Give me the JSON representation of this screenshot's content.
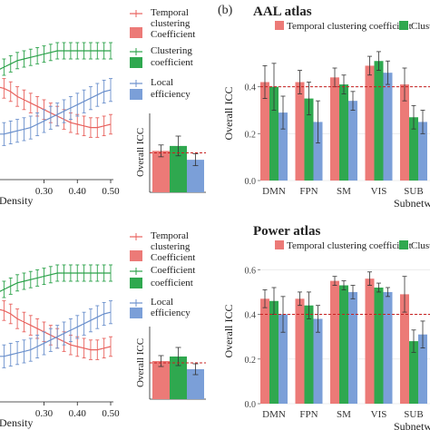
{
  "left_panel": {
    "legend": {
      "temporal": "Temporal clustering Coefficient",
      "temporal_lines": [
        "Temporal",
        "clustering"
      ],
      "temporal_patch": "Coefficient",
      "clustering_lines": [
        "Clustering",
        "coefficient"
      ],
      "local_lines": [
        "Local",
        "efficiency"
      ]
    },
    "xlabel": "Density",
    "inset_ylabel": "Overall ICC"
  },
  "right_panel": {
    "panel_label": "(b)",
    "legend_items": [
      "Temporal clustering coefficient",
      "Clust"
    ],
    "ylabel": "Overall ICC",
    "xlabel": "Subnetw"
  },
  "colors": {
    "temporal": "#e8625e",
    "clustering": "#2ca24a",
    "local": "#6b90cc",
    "temporal_bar": "#ec7a77",
    "clustering_bar": "#2fa84f",
    "local_bar": "#7b9fd8",
    "threshold": "#c82020",
    "grid": "#e8e8e8"
  },
  "chart_data": [
    {
      "type": "line",
      "x": [
        0.1,
        0.12,
        0.14,
        0.16,
        0.18,
        0.2,
        0.22,
        0.24,
        0.26,
        0.28,
        0.3,
        0.32,
        0.34,
        0.36,
        0.38,
        0.4,
        0.42,
        0.44,
        0.46,
        0.48,
        0.5
      ],
      "xtick_labels": [
        "0.30",
        "0.40",
        "0.50"
      ],
      "xlim": [
        0.1,
        0.5
      ],
      "ylim": [
        0.0,
        1.0
      ],
      "xlabel": "Density",
      "series": [
        {
          "name": "Temporal clustering Coefficient",
          "color": "#e8625e",
          "values": [
            0.62,
            0.62,
            0.6,
            0.58,
            0.57,
            0.55,
            0.52,
            0.5,
            0.48,
            0.46,
            0.44,
            0.42,
            0.4,
            0.38,
            0.36,
            0.35,
            0.34,
            0.33,
            0.33,
            0.34,
            0.35
          ],
          "err": 0.06
        },
        {
          "name": "Clustering coefficient",
          "color": "#2ca24a",
          "values": [
            0.62,
            0.64,
            0.66,
            0.68,
            0.7,
            0.72,
            0.74,
            0.75,
            0.76,
            0.77,
            0.78,
            0.79,
            0.8,
            0.8,
            0.8,
            0.8,
            0.8,
            0.8,
            0.8,
            0.8,
            0.8
          ],
          "err": 0.05
        },
        {
          "name": "Local efficiency",
          "color": "#6b90cc",
          "values": [
            0.32,
            0.3,
            0.29,
            0.29,
            0.29,
            0.3,
            0.31,
            0.32,
            0.33,
            0.35,
            0.37,
            0.39,
            0.41,
            0.43,
            0.45,
            0.47,
            0.49,
            0.51,
            0.53,
            0.55,
            0.56
          ],
          "err": 0.07
        }
      ]
    },
    {
      "type": "bar",
      "ylabel": "Overall ICC",
      "ylim": [
        0.0,
        0.8
      ],
      "threshold": 0.4,
      "series": [
        {
          "name": "Temporal clustering Coefficient",
          "color": "#ec7a77",
          "value": 0.42,
          "err": 0.06
        },
        {
          "name": "Clustering coefficient",
          "color": "#2fa84f",
          "value": 0.47,
          "err": 0.1
        },
        {
          "name": "Local efficiency",
          "color": "#7b9fd8",
          "value": 0.33,
          "err": 0.06
        }
      ]
    },
    {
      "type": "bar",
      "title": "AAL atlas",
      "categories": [
        "DMN",
        "FPN",
        "SM",
        "VIS",
        "SUB"
      ],
      "ylabel": "Overall ICC",
      "xlabel": "Subnetw",
      "ylim": [
        0.0,
        0.6
      ],
      "yticks": [
        0.0,
        0.2,
        0.4
      ],
      "threshold": 0.4,
      "series": [
        {
          "name": "Temporal clustering coefficient",
          "color": "#ec7a77",
          "values": [
            0.42,
            0.42,
            0.44,
            0.49,
            0.41
          ],
          "err": [
            0.07,
            0.05,
            0.04,
            0.04,
            0.07
          ]
        },
        {
          "name": "Clust",
          "color": "#2fa84f",
          "values": [
            0.4,
            0.35,
            0.41,
            0.51,
            0.27
          ],
          "err": [
            0.1,
            0.07,
            0.04,
            0.04,
            0.05
          ]
        },
        {
          "name": "",
          "color": "#7b9fd8",
          "values": [
            0.29,
            0.25,
            0.34,
            0.46,
            0.25
          ],
          "err": [
            0.07,
            0.09,
            0.04,
            0.05,
            0.05
          ]
        }
      ]
    },
    {
      "type": "bar",
      "title": "Power atlas",
      "categories": [
        "DMN",
        "FPN",
        "SM",
        "VIS",
        "SUB"
      ],
      "ylabel": "Overall ICC",
      "ylim": [
        0.0,
        0.65
      ],
      "yticks": [
        0.0,
        0.2,
        0.4,
        0.6
      ],
      "threshold": 0.4,
      "series": [
        {
          "name": "Temporal clustering coefficient",
          "color": "#ec7a77",
          "values": [
            0.47,
            0.47,
            0.55,
            0.56,
            0.49
          ],
          "err": [
            0.04,
            0.03,
            0.02,
            0.03,
            0.08
          ]
        },
        {
          "name": "Clust",
          "color": "#2fa84f",
          "values": [
            0.46,
            0.44,
            0.53,
            0.52,
            0.28
          ],
          "err": [
            0.06,
            0.06,
            0.02,
            0.02,
            0.05
          ]
        },
        {
          "name": "",
          "color": "#7b9fd8",
          "values": [
            0.4,
            0.38,
            0.5,
            0.5,
            0.31
          ],
          "err": [
            0.08,
            0.06,
            0.03,
            0.02,
            0.06
          ]
        }
      ]
    }
  ]
}
